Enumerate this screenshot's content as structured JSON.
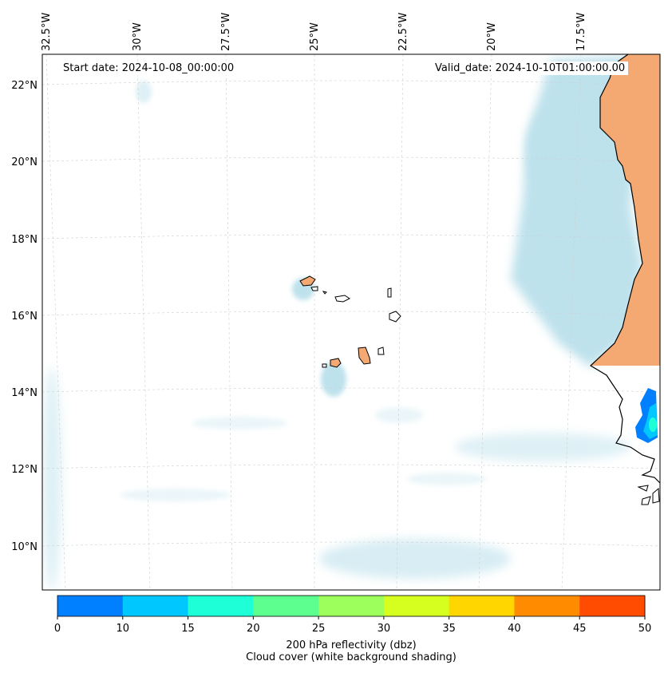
{
  "header": {
    "start_date": "Start date: 2024-10-08_00:00:00",
    "valid_date": "Valid_date: 2024-10-10T01:00:00.00"
  },
  "map": {
    "lon_labels": [
      "32.5°W",
      "30°W",
      "27.5°W",
      "25°W",
      "22.5°W",
      "20°W",
      "17.5°W"
    ],
    "lat_labels": [
      "22°N",
      "20°N",
      "18°N",
      "16°N",
      "14°N",
      "12°N",
      "10°N"
    ],
    "land_color": "#f4a872",
    "cloud_color": "#a8d8e6",
    "coastline_color": "#000000",
    "gridlines": true
  },
  "colorbar": {
    "colors": [
      "#007fff",
      "#00c8ff",
      "#1effd8",
      "#5dff8f",
      "#9dff5b",
      "#d6ff1f",
      "#ffd600",
      "#ff8c00",
      "#ff4c00"
    ],
    "tick_labels": [
      "0",
      "10",
      "15",
      "20",
      "25",
      "30",
      "35",
      "40",
      "45",
      "50"
    ],
    "title_line1": "200 hPa reflectivity (dbz)",
    "title_line2": "Cloud cover (white background shading)"
  }
}
